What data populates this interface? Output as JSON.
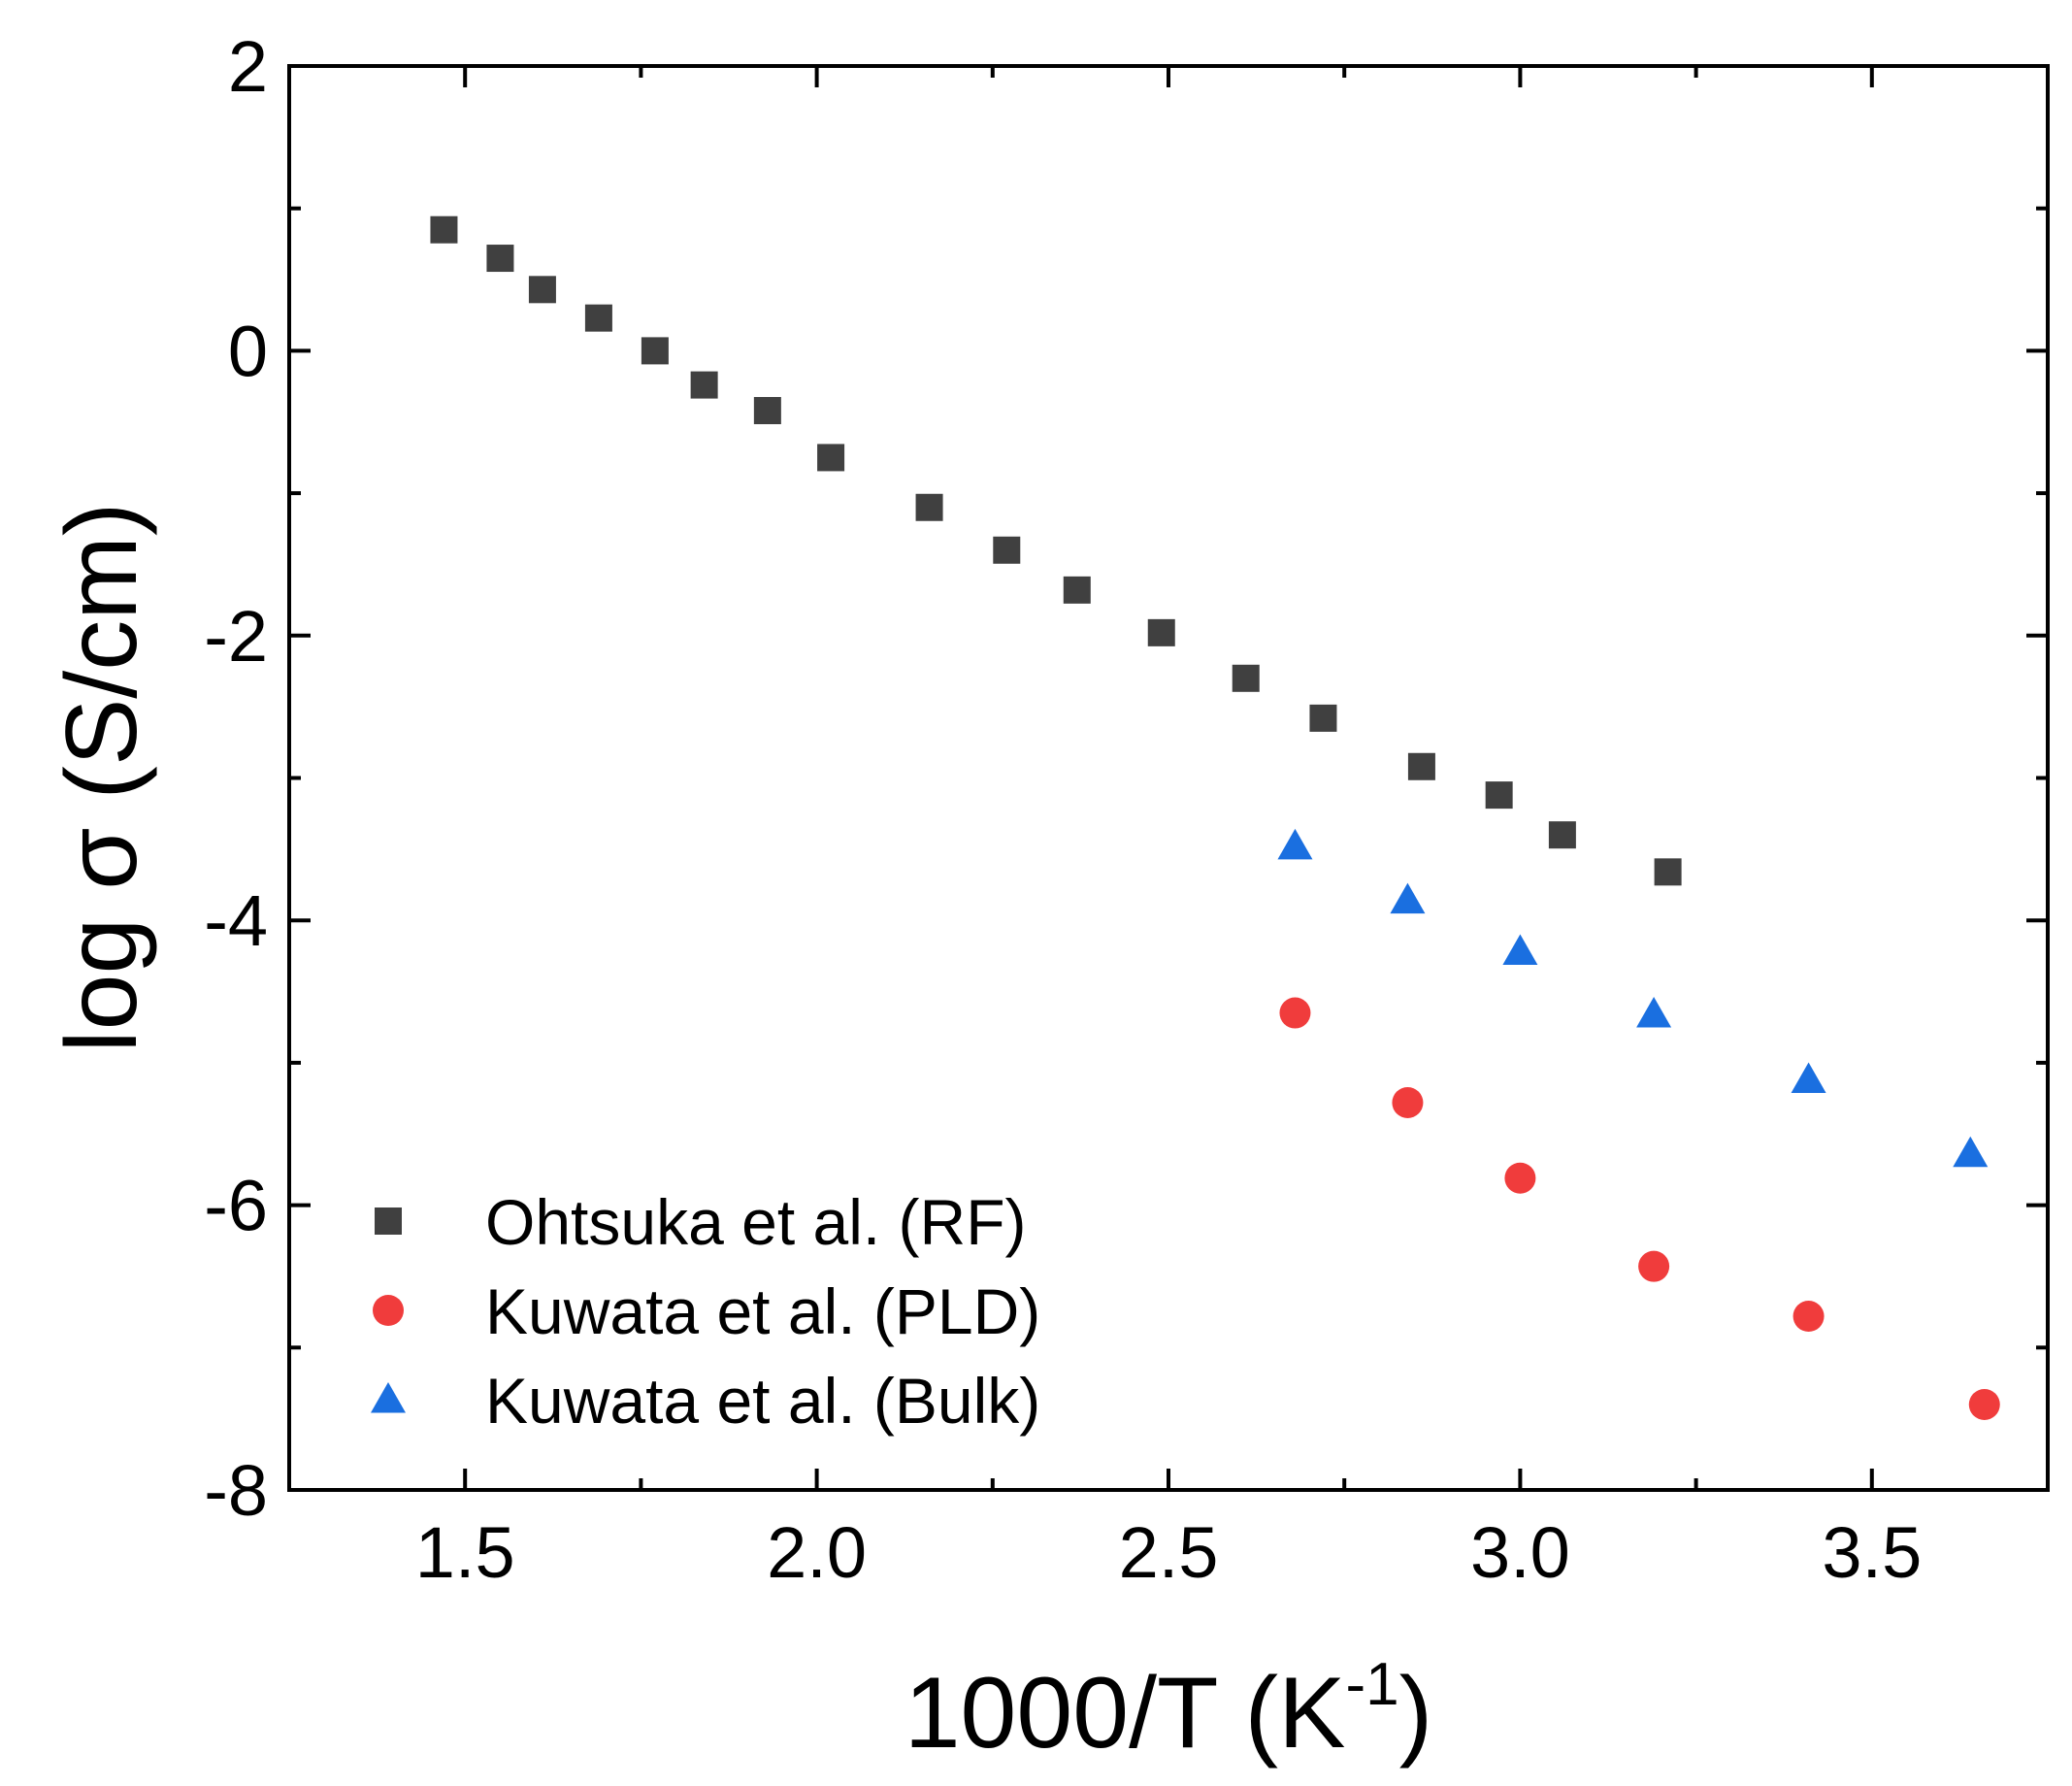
{
  "chart_data": {
    "type": "scatter",
    "title": "",
    "xlabel": "1000/T (K",
    "xlabel_sup": "-1",
    "xlabel_close": ")",
    "ylabel": "log σ (S/cm)",
    "xlim": [
      1.25,
      3.75
    ],
    "ylim": [
      -8,
      2
    ],
    "xticks": [
      1.5,
      2.0,
      2.5,
      3.0,
      3.5
    ],
    "xtick_labels": [
      "1.5",
      "2.0",
      "2.5",
      "3.0",
      "3.5"
    ],
    "yticks": [
      -8,
      -6,
      -4,
      -2,
      0,
      2
    ],
    "ytick_labels": [
      "-8",
      "-6",
      "-4",
      "-2",
      "0",
      "2"
    ],
    "grid": false,
    "legend_position": "bottom-left",
    "series": [
      {
        "name": "Ohtsuka et al. (RF)",
        "marker": "square",
        "color": "#404040",
        "x": [
          1.47,
          1.55,
          1.61,
          1.69,
          1.77,
          1.84,
          1.93,
          2.02,
          2.16,
          2.27,
          2.37,
          2.49,
          2.61,
          2.72,
          2.86,
          2.97,
          3.06,
          3.21
        ],
        "y": [
          0.85,
          0.65,
          0.43,
          0.23,
          0.0,
          -0.24,
          -0.42,
          -0.75,
          -1.1,
          -1.4,
          -1.68,
          -1.98,
          -2.3,
          -2.58,
          -2.92,
          -3.12,
          -3.4,
          -3.66
        ]
      },
      {
        "name": "Kuwata et al. (PLD)",
        "marker": "circle",
        "color": "#f03c3c",
        "x": [
          2.68,
          2.84,
          3.0,
          3.19,
          3.41,
          3.66
        ],
        "y": [
          -4.65,
          -5.28,
          -5.81,
          -6.43,
          -6.78,
          -7.4
        ]
      },
      {
        "name": "Kuwata et al. (Bulk)",
        "marker": "triangle",
        "color": "#1a6fe0",
        "x": [
          2.68,
          2.84,
          3.0,
          3.19,
          3.41,
          3.64
        ],
        "y": [
          -3.48,
          -3.86,
          -4.22,
          -4.66,
          -5.12,
          -5.64
        ]
      }
    ]
  }
}
